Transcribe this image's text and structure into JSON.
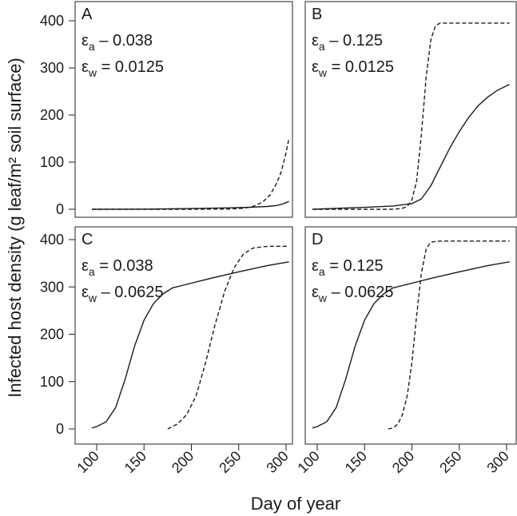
{
  "figure": {
    "ylabel": "Infected host density (g leaf/m² soil surface)",
    "xlabel": "Day of year"
  },
  "chart_data": [
    {
      "type": "line",
      "panel_label": "A",
      "annotation_lines": [
        {
          "sym": "ε",
          "sub": "a",
          "text": " – 0.038"
        },
        {
          "sym": "ε",
          "sub": "w",
          "text": " = 0.0125"
        }
      ],
      "xlim": [
        90,
        305
      ],
      "ylim": [
        0,
        420
      ],
      "xticks": [
        100,
        150,
        200,
        250,
        300
      ],
      "yticks": [
        0,
        100,
        200,
        300,
        400
      ],
      "xticklabels": [
        "100",
        "150",
        "200",
        "250",
        "300"
      ],
      "yticklabels": [
        "0",
        "100",
        "200",
        "300",
        "400"
      ],
      "series": [
        {
          "style": "solid",
          "x": [
            95,
            150,
            200,
            240,
            260,
            280,
            290,
            296,
            300,
            303
          ],
          "y": [
            0,
            0.3,
            1.5,
            3,
            4,
            6,
            8,
            11,
            14,
            17
          ]
        },
        {
          "style": "dashed",
          "x": [
            95,
            200,
            240,
            255,
            265,
            275,
            283,
            290,
            295,
            300,
            303
          ],
          "y": [
            0,
            0,
            0.5,
            2,
            6,
            15,
            30,
            55,
            80,
            120,
            150
          ]
        }
      ]
    },
    {
      "type": "line",
      "panel_label": "B",
      "annotation_lines": [
        {
          "sym": "ε",
          "sub": "a",
          "text": " – 0.125"
        },
        {
          "sym": "ε",
          "sub": "w",
          "text": " = 0.0125"
        }
      ],
      "xlim": [
        90,
        305
      ],
      "ylim": [
        0,
        420
      ],
      "xticks": [
        100,
        150,
        200,
        250,
        300
      ],
      "yticks": [
        0,
        100,
        200,
        300,
        400
      ],
      "xticklabels": [
        "100",
        "150",
        "200",
        "250",
        "300"
      ],
      "yticklabels": [
        "0",
        "100",
        "200",
        "300",
        "400"
      ],
      "series": [
        {
          "style": "solid",
          "x": [
            95,
            120,
            150,
            180,
            200,
            210,
            220,
            230,
            240,
            250,
            260,
            270,
            280,
            290,
            300,
            303
          ],
          "y": [
            0,
            2,
            4,
            7,
            12,
            22,
            50,
            90,
            130,
            165,
            195,
            220,
            238,
            252,
            262,
            265
          ]
        },
        {
          "style": "dashed",
          "x": [
            95,
            180,
            190,
            195,
            200,
            205,
            210,
            215,
            220,
            225,
            230,
            250,
            280,
            303
          ],
          "y": [
            0,
            0,
            2,
            6,
            20,
            60,
            160,
            280,
            360,
            390,
            395,
            395,
            395,
            395
          ]
        }
      ]
    },
    {
      "type": "line",
      "panel_label": "C",
      "annotation_lines": [
        {
          "sym": "ε",
          "sub": "a",
          "text": " = 0.038"
        },
        {
          "sym": "ε",
          "sub": "w",
          "text": " – 0.0625"
        }
      ],
      "xlim": [
        90,
        305
      ],
      "ylim": [
        0,
        420
      ],
      "xticks": [
        100,
        150,
        200,
        250,
        300
      ],
      "yticks": [
        0,
        100,
        200,
        300,
        400
      ],
      "xticklabels": [
        "100",
        "150",
        "200",
        "250",
        "300"
      ],
      "yticklabels": [
        "0",
        "100",
        "200",
        "300",
        "400"
      ],
      "series": [
        {
          "style": "solid",
          "x": [
            95,
            100,
            110,
            120,
            130,
            140,
            150,
            160,
            170,
            180,
            190,
            200,
            220,
            250,
            280,
            303
          ],
          "y": [
            2,
            5,
            15,
            45,
            105,
            175,
            230,
            265,
            285,
            298,
            303,
            308,
            318,
            332,
            345,
            353
          ]
        },
        {
          "style": "dashed",
          "x": [
            175,
            185,
            195,
            205,
            215,
            225,
            230,
            235,
            245,
            255,
            265,
            275,
            285,
            303
          ],
          "y": [
            0,
            10,
            30,
            70,
            140,
            220,
            255,
            290,
            340,
            370,
            382,
            385,
            386,
            386
          ]
        }
      ]
    },
    {
      "type": "line",
      "panel_label": "D",
      "annotation_lines": [
        {
          "sym": "ε",
          "sub": "a",
          "text": " = 0.125"
        },
        {
          "sym": "ε",
          "sub": "w",
          "text": " – 0.0625"
        }
      ],
      "xlim": [
        90,
        305
      ],
      "ylim": [
        0,
        420
      ],
      "xticks": [
        100,
        150,
        200,
        250,
        300
      ],
      "yticks": [
        0,
        100,
        200,
        300,
        400
      ],
      "xticklabels": [
        "100",
        "150",
        "200",
        "250",
        "300"
      ],
      "yticklabels": [
        "0",
        "100",
        "200",
        "300",
        "400"
      ],
      "series": [
        {
          "style": "solid",
          "x": [
            95,
            100,
            110,
            120,
            130,
            140,
            150,
            160,
            170,
            180,
            190,
            200,
            220,
            250,
            280,
            303
          ],
          "y": [
            2,
            5,
            15,
            45,
            105,
            175,
            230,
            265,
            285,
            298,
            303,
            308,
            318,
            332,
            345,
            353
          ]
        },
        {
          "style": "dashed",
          "x": [
            175,
            180,
            185,
            190,
            195,
            200,
            205,
            210,
            215,
            220,
            230,
            260,
            303
          ],
          "y": [
            0,
            2,
            10,
            30,
            70,
            140,
            240,
            330,
            380,
            395,
            397,
            397,
            397
          ]
        }
      ]
    }
  ]
}
